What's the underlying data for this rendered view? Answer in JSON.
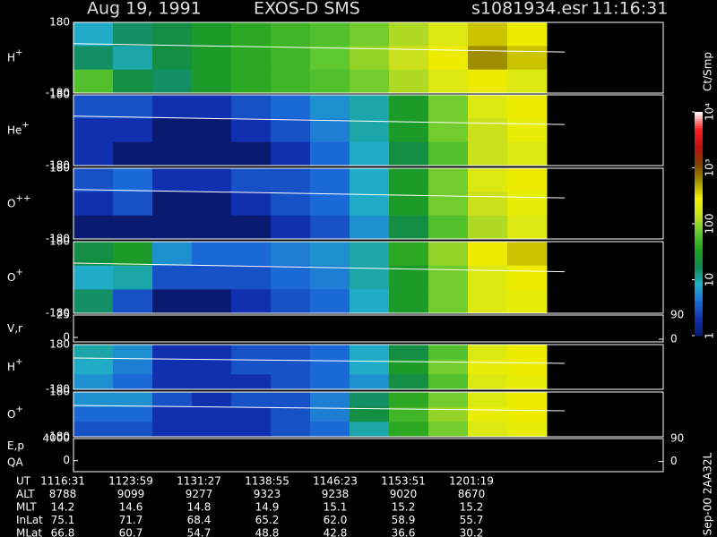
{
  "header": {
    "date": "Aug 19, 1991",
    "mission": "EXOS-D SMS",
    "file": "s1081934.esr",
    "time": "11:16:31"
  },
  "chart_data": [
    {
      "type": "heatmap",
      "label": "H",
      "sup": "+",
      "ylim": [
        -180,
        180
      ],
      "yticks": [
        180,
        -180
      ],
      "z": [
        [
          8,
          15,
          20,
          30,
          40,
          50,
          60,
          80,
          120,
          200,
          400,
          300
        ],
        [
          15,
          10,
          20,
          30,
          40,
          50,
          70,
          100,
          150,
          300,
          600,
          400
        ],
        [
          60,
          20,
          15,
          30,
          40,
          50,
          60,
          80,
          120,
          200,
          300,
          200
        ]
      ]
    },
    {
      "type": "heatmap",
      "label": "He",
      "sup": "+",
      "ylim": [
        -180,
        180
      ],
      "yticks": [
        180,
        -180
      ],
      "z": [
        [
          3,
          3,
          2,
          2,
          3,
          4,
          6,
          10,
          30,
          80,
          200,
          300
        ],
        [
          2,
          2,
          1,
          1,
          2,
          3,
          5,
          10,
          30,
          80,
          150,
          250
        ],
        [
          2,
          1,
          1,
          1,
          1,
          2,
          4,
          8,
          20,
          60,
          150,
          200
        ]
      ]
    },
    {
      "type": "heatmap",
      "label": "O",
      "sup": "++",
      "ylim": [
        -180,
        180
      ],
      "yticks": [
        180,
        -180
      ],
      "z": [
        [
          3,
          4,
          2,
          2,
          3,
          3,
          4,
          8,
          30,
          80,
          200,
          300
        ],
        [
          2,
          3,
          1,
          1,
          2,
          3,
          4,
          8,
          30,
          80,
          150,
          250
        ],
        [
          1,
          1,
          1,
          1,
          1,
          2,
          3,
          6,
          20,
          60,
          120,
          200
        ]
      ]
    },
    {
      "type": "heatmap",
      "label": "O",
      "sup": "+",
      "ylim": [
        -180,
        180
      ],
      "yticks": [
        180,
        -180
      ],
      "z": [
        [
          20,
          30,
          6,
          4,
          4,
          5,
          6,
          10,
          40,
          100,
          300,
          400
        ],
        [
          8,
          10,
          3,
          3,
          3,
          4,
          5,
          10,
          30,
          80,
          200,
          300
        ],
        [
          15,
          3,
          1,
          1,
          2,
          3,
          4,
          8,
          30,
          80,
          200,
          250
        ]
      ]
    },
    {
      "type": "line",
      "label": "V,r",
      "ylim": [
        -5,
        25
      ],
      "yticks": [
        25,
        0
      ],
      "y2lim": [
        -10,
        90
      ],
      "y2ticks": [
        90,
        0
      ]
    },
    {
      "type": "heatmap",
      "label": "H",
      "sup": "+",
      "ylim": [
        -180,
        180
      ],
      "yticks": [
        180,
        -180
      ],
      "z": [
        [
          10,
          6,
          2,
          2,
          3,
          3,
          4,
          8,
          20,
          60,
          200,
          300
        ],
        [
          8,
          5,
          2,
          2,
          3,
          3,
          4,
          8,
          30,
          80,
          250,
          300
        ],
        [
          6,
          4,
          2,
          2,
          2,
          3,
          4,
          6,
          20,
          60,
          200,
          250
        ]
      ]
    },
    {
      "type": "heatmap",
      "label": "O",
      "sup": "+",
      "ylim": [
        -180,
        180
      ],
      "yticks": [
        180,
        -180
      ],
      "z": [
        [
          6,
          6,
          3,
          2,
          3,
          3,
          5,
          15,
          40,
          80,
          200,
          300
        ],
        [
          4,
          4,
          2,
          2,
          2,
          3,
          5,
          20,
          50,
          100,
          250,
          300
        ],
        [
          3,
          3,
          2,
          2,
          2,
          3,
          4,
          10,
          40,
          80,
          200,
          250
        ]
      ]
    },
    {
      "type": "line",
      "label": "E,p",
      "label2": "QA",
      "ylim": [
        -2000,
        4000
      ],
      "yticks": [
        4000,
        0
      ],
      "y2lim": [
        -40,
        90
      ],
      "y2ticks": [
        90,
        0
      ]
    }
  ],
  "colorbar": {
    "title": "Ct/Smp",
    "log": true,
    "clim": [
      1,
      10000
    ],
    "colors": [
      "#0a1a70",
      "#1030b0",
      "#1c6cd8",
      "#20b0c8",
      "#108850",
      "#20a020",
      "#60c830",
      "#c8e020",
      "#f0f000",
      "#a09000",
      "#804000",
      "#c01010",
      "#ff2020",
      "#ffffff"
    ],
    "ticks": [
      1,
      10,
      100,
      {
        "value": 1000,
        "label": "10³"
      },
      {
        "value": 10000,
        "label": "10⁴"
      }
    ]
  },
  "ephemeris": {
    "labels": [
      "UT",
      "ALT",
      "MLT",
      "InLat",
      "MLat"
    ],
    "rows": [
      [
        "1116:31",
        "1123:59",
        "1131:27",
        "1138:55",
        "1146:23",
        "1153:51",
        "1201:19"
      ],
      [
        "8788",
        "9099",
        "9277",
        "9323",
        "9238",
        "9020",
        "8670"
      ],
      [
        "14.2",
        "14.6",
        "14.8",
        "14.9",
        "15.1",
        "15.2",
        "15.2"
      ],
      [
        "75.1",
        "71.7",
        "68.4",
        "65.2",
        "62.0",
        "58.9",
        "55.7"
      ],
      [
        "66.8",
        "60.7",
        "54.7",
        "48.8",
        "42.8",
        "36.6",
        "30.2"
      ]
    ]
  },
  "footer": "Sep-00 2AA32L"
}
